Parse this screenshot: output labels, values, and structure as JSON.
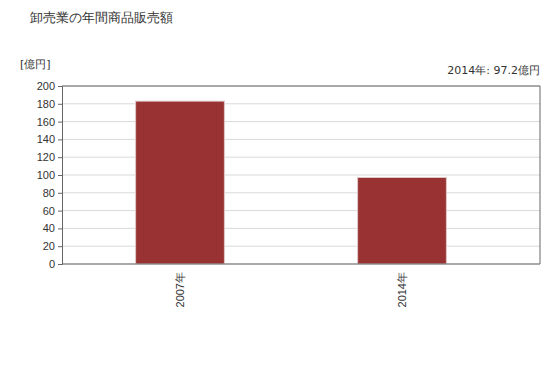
{
  "chart_data": {
    "type": "bar",
    "title": "卸売業の年間商品販売額",
    "y_label": "[億円]",
    "annotation": "2014年: 97.2億円",
    "categories": [
      "2007年",
      "2014年"
    ],
    "values": [
      183,
      97.2
    ],
    "color": "#993333",
    "ylim": [
      0,
      200
    ],
    "yticks": [
      0,
      20,
      40,
      60,
      80,
      100,
      120,
      140,
      160,
      180,
      200
    ],
    "grid": true
  }
}
